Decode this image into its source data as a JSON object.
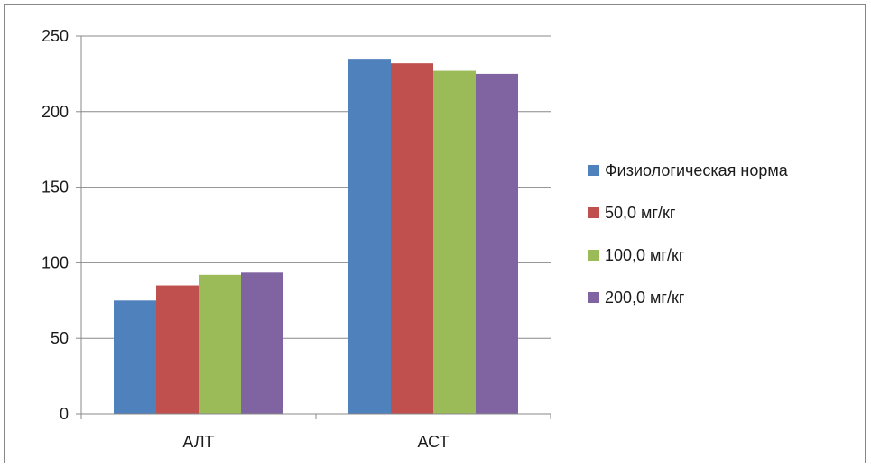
{
  "chart_data": {
    "type": "bar",
    "categories": [
      "АЛТ",
      "АСТ"
    ],
    "series": [
      {
        "name": "Физиологическая норма",
        "values": [
          75,
          235
        ],
        "color": "#4f81bd"
      },
      {
        "name": "50,0 мг/кг",
        "values": [
          85,
          232
        ],
        "color": "#c0504d"
      },
      {
        "name": "100,0 мг/кг",
        "values": [
          92,
          227
        ],
        "color": "#9bbb59"
      },
      {
        "name": "200,0 мг/кг",
        "values": [
          93.5,
          225
        ],
        "color": "#8064a2"
      }
    ],
    "ylim": [
      0,
      250
    ],
    "yticks": [
      "0",
      "50",
      "100",
      "150",
      "200",
      "250"
    ],
    "grid": true,
    "legend": "right"
  }
}
